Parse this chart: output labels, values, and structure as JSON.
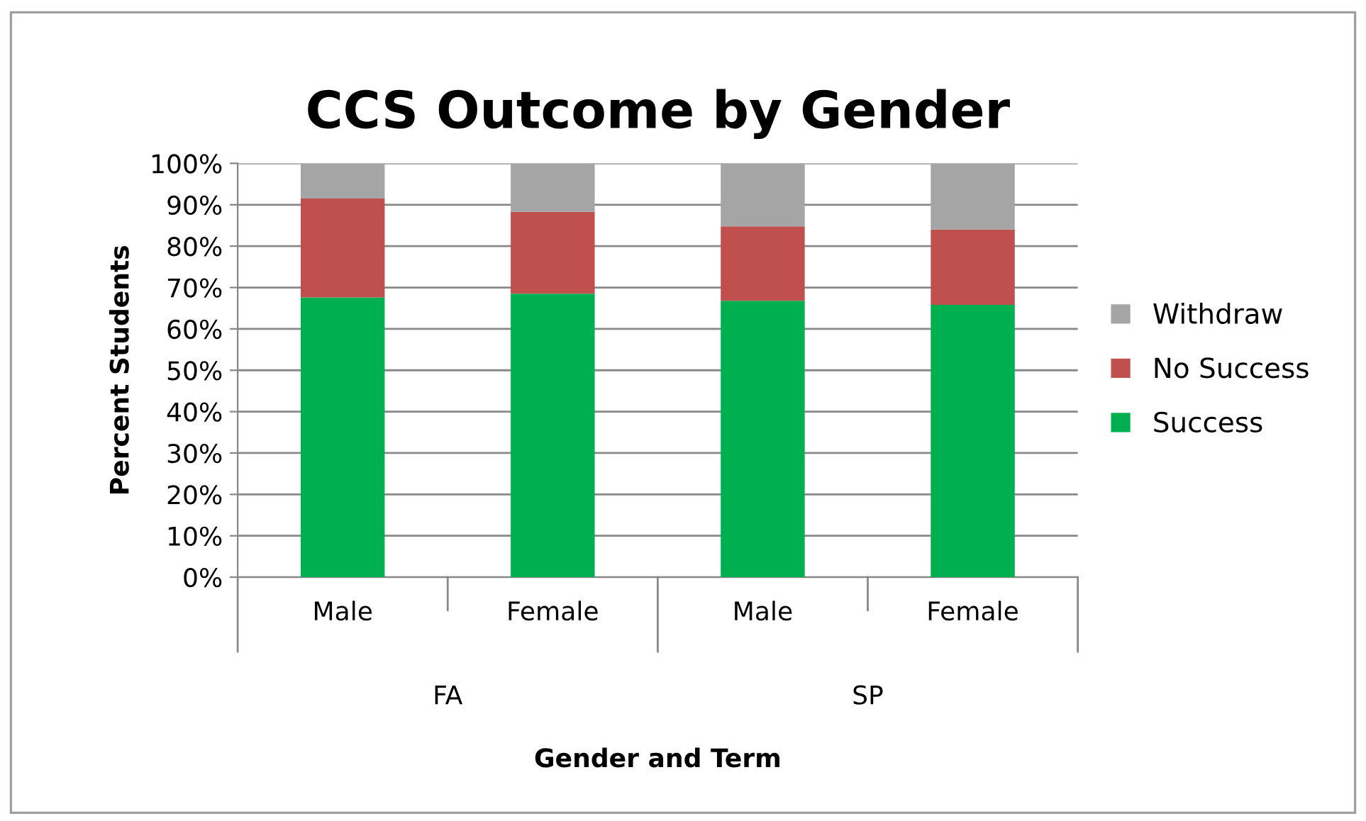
{
  "chart_data": {
    "type": "bar",
    "title": "CCS Outcome by Gender",
    "xlabel": "Gender and Term",
    "ylabel": "Percent Students",
    "categories": [
      "Male",
      "Female",
      "Male",
      "Female"
    ],
    "annotations": [
      "FA",
      "SP"
    ],
    "stacked": true,
    "series": [
      {
        "name": "Success",
        "color": "#00b050",
        "values": [
          67.6,
          68.5,
          66.8,
          65.8
        ]
      },
      {
        "name": "No Success",
        "color": "#c0504d",
        "values": [
          23.9,
          19.8,
          18.0,
          18.2
        ]
      },
      {
        "name": "Withdraw",
        "color": "#a5a5a5",
        "values": [
          8.5,
          11.7,
          15.2,
          16.0
        ]
      }
    ],
    "ylim": [
      0,
      100
    ],
    "yticks": [
      {
        "value": 0,
        "label": "0%"
      },
      {
        "value": 10,
        "label": "10%"
      },
      {
        "value": 20,
        "label": "20%"
      },
      {
        "value": 30,
        "label": "30%"
      },
      {
        "value": 40,
        "label": "40%"
      },
      {
        "value": 50,
        "label": "50%"
      },
      {
        "value": 60,
        "label": "60%"
      },
      {
        "value": 70,
        "label": "70%"
      },
      {
        "value": 80,
        "label": "80%"
      },
      {
        "value": 90,
        "label": "90%"
      },
      {
        "value": 100,
        "label": "100%"
      }
    ],
    "grid": "y",
    "legend": "right"
  }
}
